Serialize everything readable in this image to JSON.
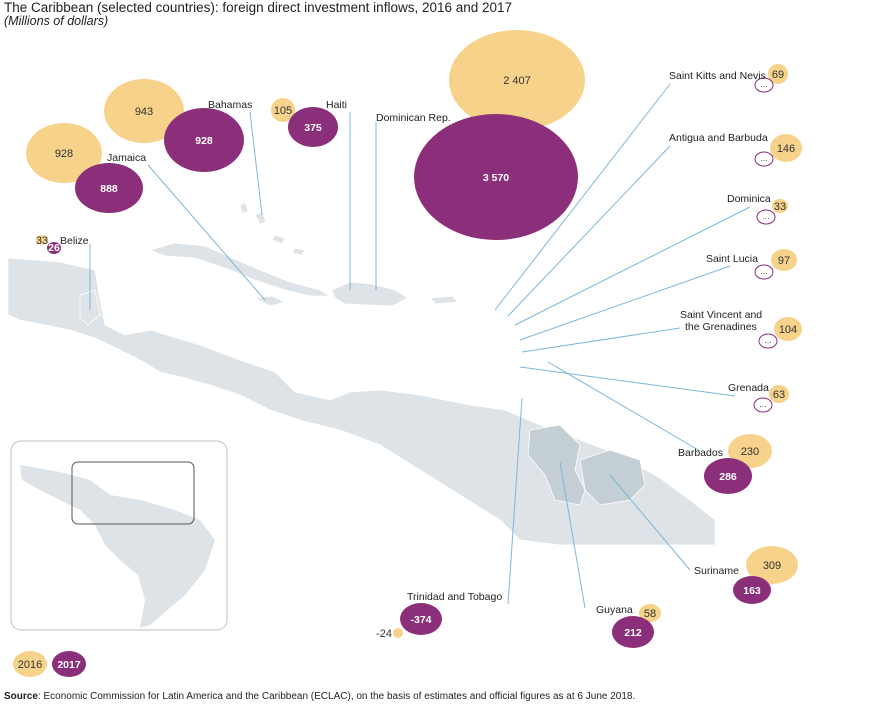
{
  "title": "The Caribbean (selected countries): foreign direct investment inflows, 2016 and 2017",
  "subtitle": "(Millions of dollars)",
  "legend": {
    "y2016": "2016",
    "y2017": "2017"
  },
  "colors": {
    "y2016": "#f7d28a",
    "y2017": "#8b2f7a",
    "land": "#dde3e6",
    "highlight": "#c3ced5",
    "leader": "#7fb6d8"
  },
  "not_available_symbol": "...",
  "source": {
    "label": "Source",
    "text": ": Economic Commission for Latin America and the Caribbean (ECLAC), on the basis of estimates and official figures as at 6 June 2018."
  },
  "countries": [
    {
      "name": "Bahamas",
      "v2016": "943",
      "v2017": "928"
    },
    {
      "name": "Haiti",
      "v2016": "105",
      "v2017": "375"
    },
    {
      "name": "Dominican Rep.",
      "v2016": "2 407",
      "v2017": "3 570"
    },
    {
      "name": "Jamaica",
      "v2016": "928",
      "v2017": "888"
    },
    {
      "name": "Belize",
      "v2016": "33",
      "v2017": "26"
    },
    {
      "name": "Saint Kitts and Nevis",
      "v2016": "69",
      "v2017": "..."
    },
    {
      "name": "Antigua and Barbuda",
      "v2016": "146",
      "v2017": "..."
    },
    {
      "name": "Dominica",
      "v2016": "33",
      "v2017": "..."
    },
    {
      "name": "Saint Lucia",
      "v2016": "97",
      "v2017": "..."
    },
    {
      "name": "Saint Vincent and the Grenadines",
      "v2016": "104",
      "v2017": "..."
    },
    {
      "name": "Grenada",
      "v2016": "63",
      "v2017": "..."
    },
    {
      "name": "Barbados",
      "v2016": "230",
      "v2017": "286"
    },
    {
      "name": "Suriname",
      "v2016": "309",
      "v2017": "163"
    },
    {
      "name": "Guyana",
      "v2016": "58",
      "v2017": "212"
    },
    {
      "name": "Trinidad and Tobago",
      "v2016": "-24",
      "v2017": "-374"
    }
  ]
}
